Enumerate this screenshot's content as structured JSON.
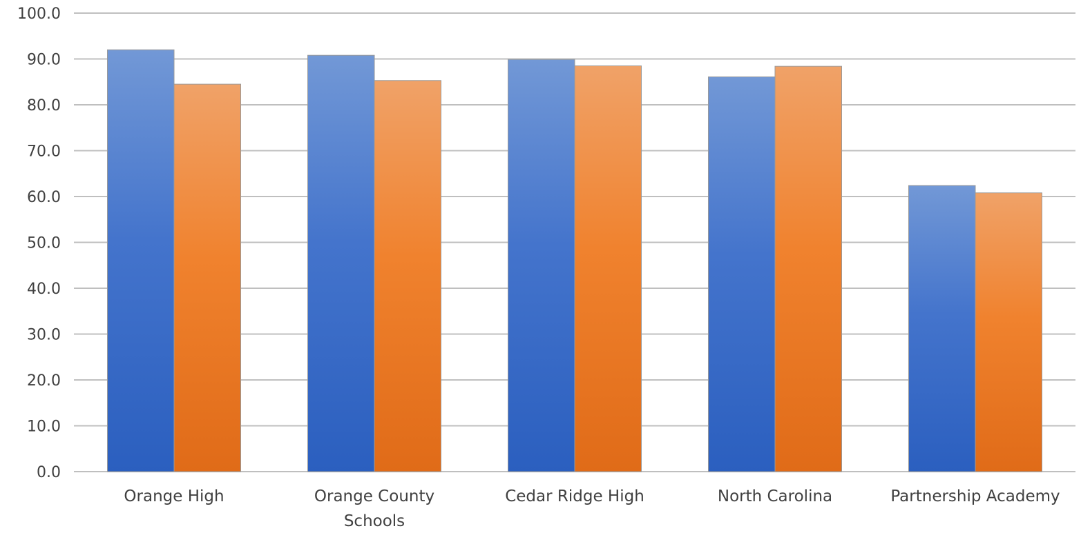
{
  "chart_data": {
    "type": "bar",
    "categories": [
      "Orange High",
      "Orange County Schools",
      "Cedar Ridge High",
      "North Carolina",
      "Partnership Academy"
    ],
    "category_lines": [
      [
        "Orange High"
      ],
      [
        "Orange County",
        "Schools"
      ],
      [
        "Cedar Ridge High"
      ],
      [
        "North Carolina"
      ],
      [
        "Partnership Academy"
      ]
    ],
    "series": [
      {
        "values": [
          92.0,
          90.8,
          89.9,
          86.1,
          62.4
        ],
        "color": "#4472C4"
      },
      {
        "values": [
          84.5,
          85.3,
          88.5,
          88.4,
          60.8
        ],
        "color": "#ED7D31"
      }
    ],
    "ylim": [
      0,
      100
    ],
    "yticks": [
      0,
      10,
      20,
      30,
      40,
      50,
      60,
      70,
      80,
      90,
      100
    ],
    "ytick_labels": [
      "0.0",
      "10.0",
      "20.0",
      "30.0",
      "40.0",
      "50.0",
      "60.0",
      "70.0",
      "80.0",
      "90.0",
      "100.0"
    ],
    "grid": true,
    "legend": "none",
    "title": "",
    "xlabel": "",
    "ylabel": ""
  }
}
